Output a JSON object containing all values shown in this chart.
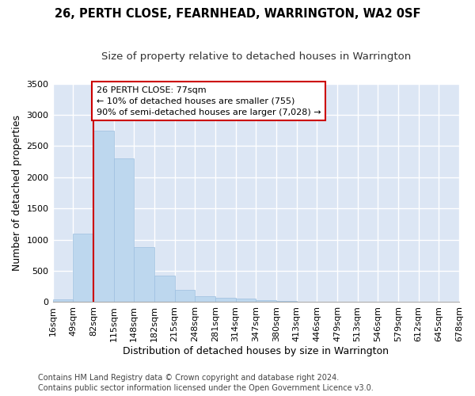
{
  "title": "26, PERTH CLOSE, FEARNHEAD, WARRINGTON, WA2 0SF",
  "subtitle": "Size of property relative to detached houses in Warrington",
  "xlabel": "Distribution of detached houses by size in Warrington",
  "ylabel": "Number of detached properties",
  "footer1": "Contains HM Land Registry data © Crown copyright and database right 2024.",
  "footer2": "Contains public sector information licensed under the Open Government Licence v3.0.",
  "annotation_title": "26 PERTH CLOSE: 77sqm",
  "annotation_line1": "← 10% of detached houses are smaller (755)",
  "annotation_line2": "90% of semi-detached houses are larger (7,028) →",
  "vline_x_index": 2.0,
  "bar_values": [
    50,
    1100,
    2750,
    2300,
    880,
    430,
    200,
    100,
    65,
    55,
    35,
    20,
    10,
    5,
    3,
    2,
    2,
    2,
    1,
    0
  ],
  "categories": [
    "16sqm",
    "49sqm",
    "82sqm",
    "115sqm",
    "148sqm",
    "182sqm",
    "215sqm",
    "248sqm",
    "281sqm",
    "314sqm",
    "347sqm",
    "380sqm",
    "413sqm",
    "446sqm",
    "479sqm",
    "513sqm",
    "546sqm",
    "579sqm",
    "612sqm",
    "645sqm",
    "678sqm"
  ],
  "bar_color": "#bdd7ee",
  "bar_edge_color": "#9dbfe0",
  "vline_color": "#cc0000",
  "annotation_box_color": "#cc0000",
  "background_color": "#dce6f4",
  "grid_color": "#ffffff",
  "title_fontsize": 10.5,
  "subtitle_fontsize": 9.5,
  "axis_label_fontsize": 9,
  "tick_fontsize": 8,
  "annotation_fontsize": 8,
  "footer_fontsize": 7,
  "ylim": [
    0,
    3500
  ]
}
